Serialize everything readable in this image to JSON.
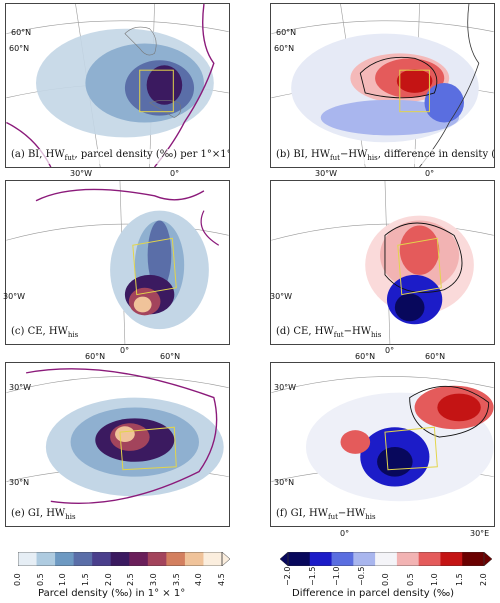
{
  "panels": {
    "a": {
      "label": "(a) BI, HW",
      "sub": "fut",
      "rest": ", parcel density (‰) per 1°×1°"
    },
    "b": {
      "label": "(b) BI, HW",
      "sub": "fut",
      "mid": "−HW",
      "sub2": "his",
      "rest": ", difference in density (‰)"
    },
    "c": {
      "label": "(c) CE, HW",
      "sub": "his"
    },
    "d": {
      "label": "(d) CE, HW",
      "sub": "fut",
      "mid": "−HW",
      "sub2": "his"
    },
    "e": {
      "label": "(e) GI, HW",
      "sub": "his"
    },
    "f": {
      "label": "(f) GI, HW",
      "sub": "fut",
      "mid": "−HW",
      "sub2": "his"
    }
  },
  "coords": {
    "a_60N_top": "60°N",
    "a_60N_left": "60°N",
    "a_30W": "30°W",
    "a_0": "0°",
    "b_60N_top": "60°N",
    "b_60N_left": "60°N",
    "b_30W": "30°W",
    "b_0": "0°",
    "c_30W": "30°W",
    "c_0": "0°",
    "d_30W": "30°W",
    "d_0": "0°",
    "e_60W": "60°N",
    "e_60N": "60°N",
    "e_30W": "30°W",
    "e_30N": "30°N",
    "f_60W": "60°N",
    "f_60N": "60°N",
    "f_30W": "30°W",
    "f_30N": "30°N",
    "f_0": "0°",
    "f_30E": "30°E"
  },
  "colorbar_left": {
    "title": "Parcel density (‰) in 1° × 1°",
    "ticks": [
      "0.0",
      "0.5",
      "1.0",
      "1.5",
      "2.0",
      "2.5",
      "3.0",
      "3.5",
      "4.0",
      "4.5"
    ],
    "colors": [
      "#e6eef5",
      "#aecbe0",
      "#6d99c2",
      "#5a6ea8",
      "#4a3f8c",
      "#3b1a60",
      "#6a1f5a",
      "#a3445c",
      "#d37f5f",
      "#f0c39a",
      "#fbeede"
    ]
  },
  "colorbar_right": {
    "title": "Difference in parcel density (‰)",
    "ticks": [
      "−2.0",
      "−1.5",
      "−1.0",
      "−0.5",
      "0.0",
      "0.5",
      "1.0",
      "1.5",
      "2.0"
    ],
    "colors": [
      "#08085c",
      "#1c1cc8",
      "#5a6ee0",
      "#a9b6ee",
      "#f4f4f8",
      "#f2b3b3",
      "#e45b5b",
      "#c41414",
      "#6a0000"
    ]
  },
  "colors": {
    "boundary": "#8b1a7a",
    "box": "#e3d54a",
    "contour": "#111111",
    "grid": "#8a8a8a",
    "coast": "#9a9a9a"
  }
}
